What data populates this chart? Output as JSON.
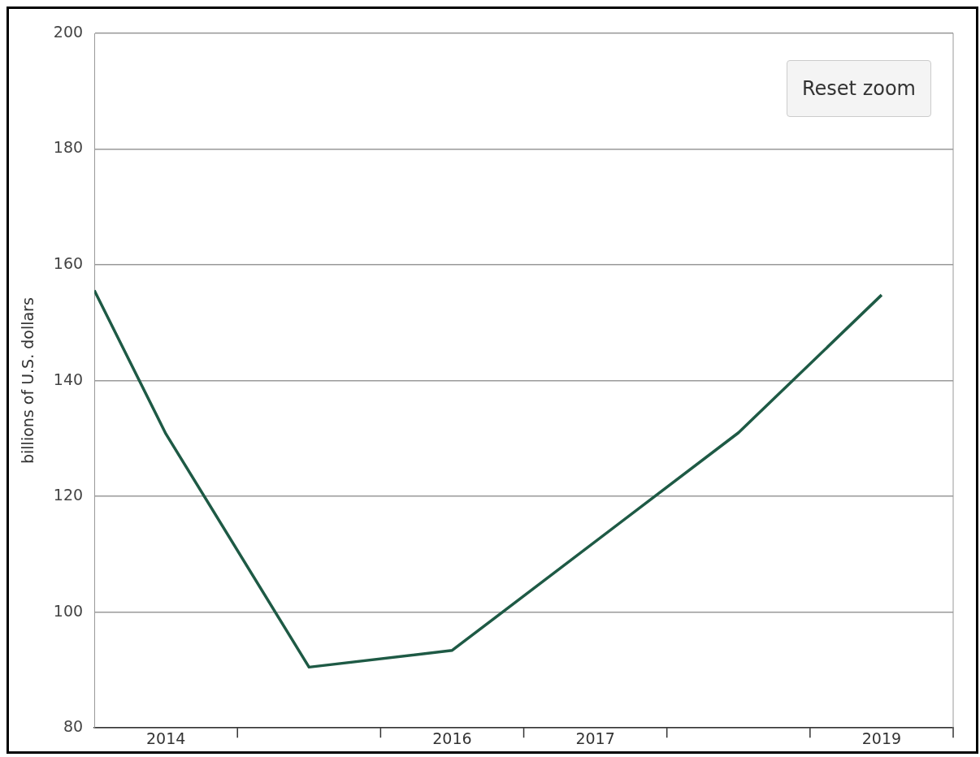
{
  "chart_data": {
    "type": "line",
    "ylabel": "billions of U.S. dollars",
    "x": [
      2013.5,
      2014,
      2015,
      2016,
      2018,
      2019
    ],
    "series": [
      {
        "color": "#1e5a45",
        "values": [
          155.6,
          130.8,
          90.5,
          93.4,
          131,
          154.8
        ]
      }
    ],
    "xlim": [
      2013.5,
      2019.5
    ],
    "xticks": [
      {
        "value": 2014,
        "label": "2014"
      },
      {
        "value": 2014.5,
        "label": null
      },
      {
        "value": 2015.5,
        "label": null
      },
      {
        "value": 2016,
        "label": "2016"
      },
      {
        "value": 2016.5,
        "label": null
      },
      {
        "value": 2017,
        "label": "2017"
      },
      {
        "value": 2017.5,
        "label": null
      },
      {
        "value": 2018.5,
        "label": null
      },
      {
        "value": 2019,
        "label": "2019"
      },
      {
        "value": 2019.5,
        "label": null
      }
    ],
    "ylim": [
      80,
      200
    ],
    "yticks": [
      80,
      100,
      120,
      140,
      160,
      180,
      200
    ],
    "grid": "y",
    "marker": "none",
    "line_style": "solid",
    "legend": false,
    "annotations": [
      "Reset zoom"
    ]
  }
}
